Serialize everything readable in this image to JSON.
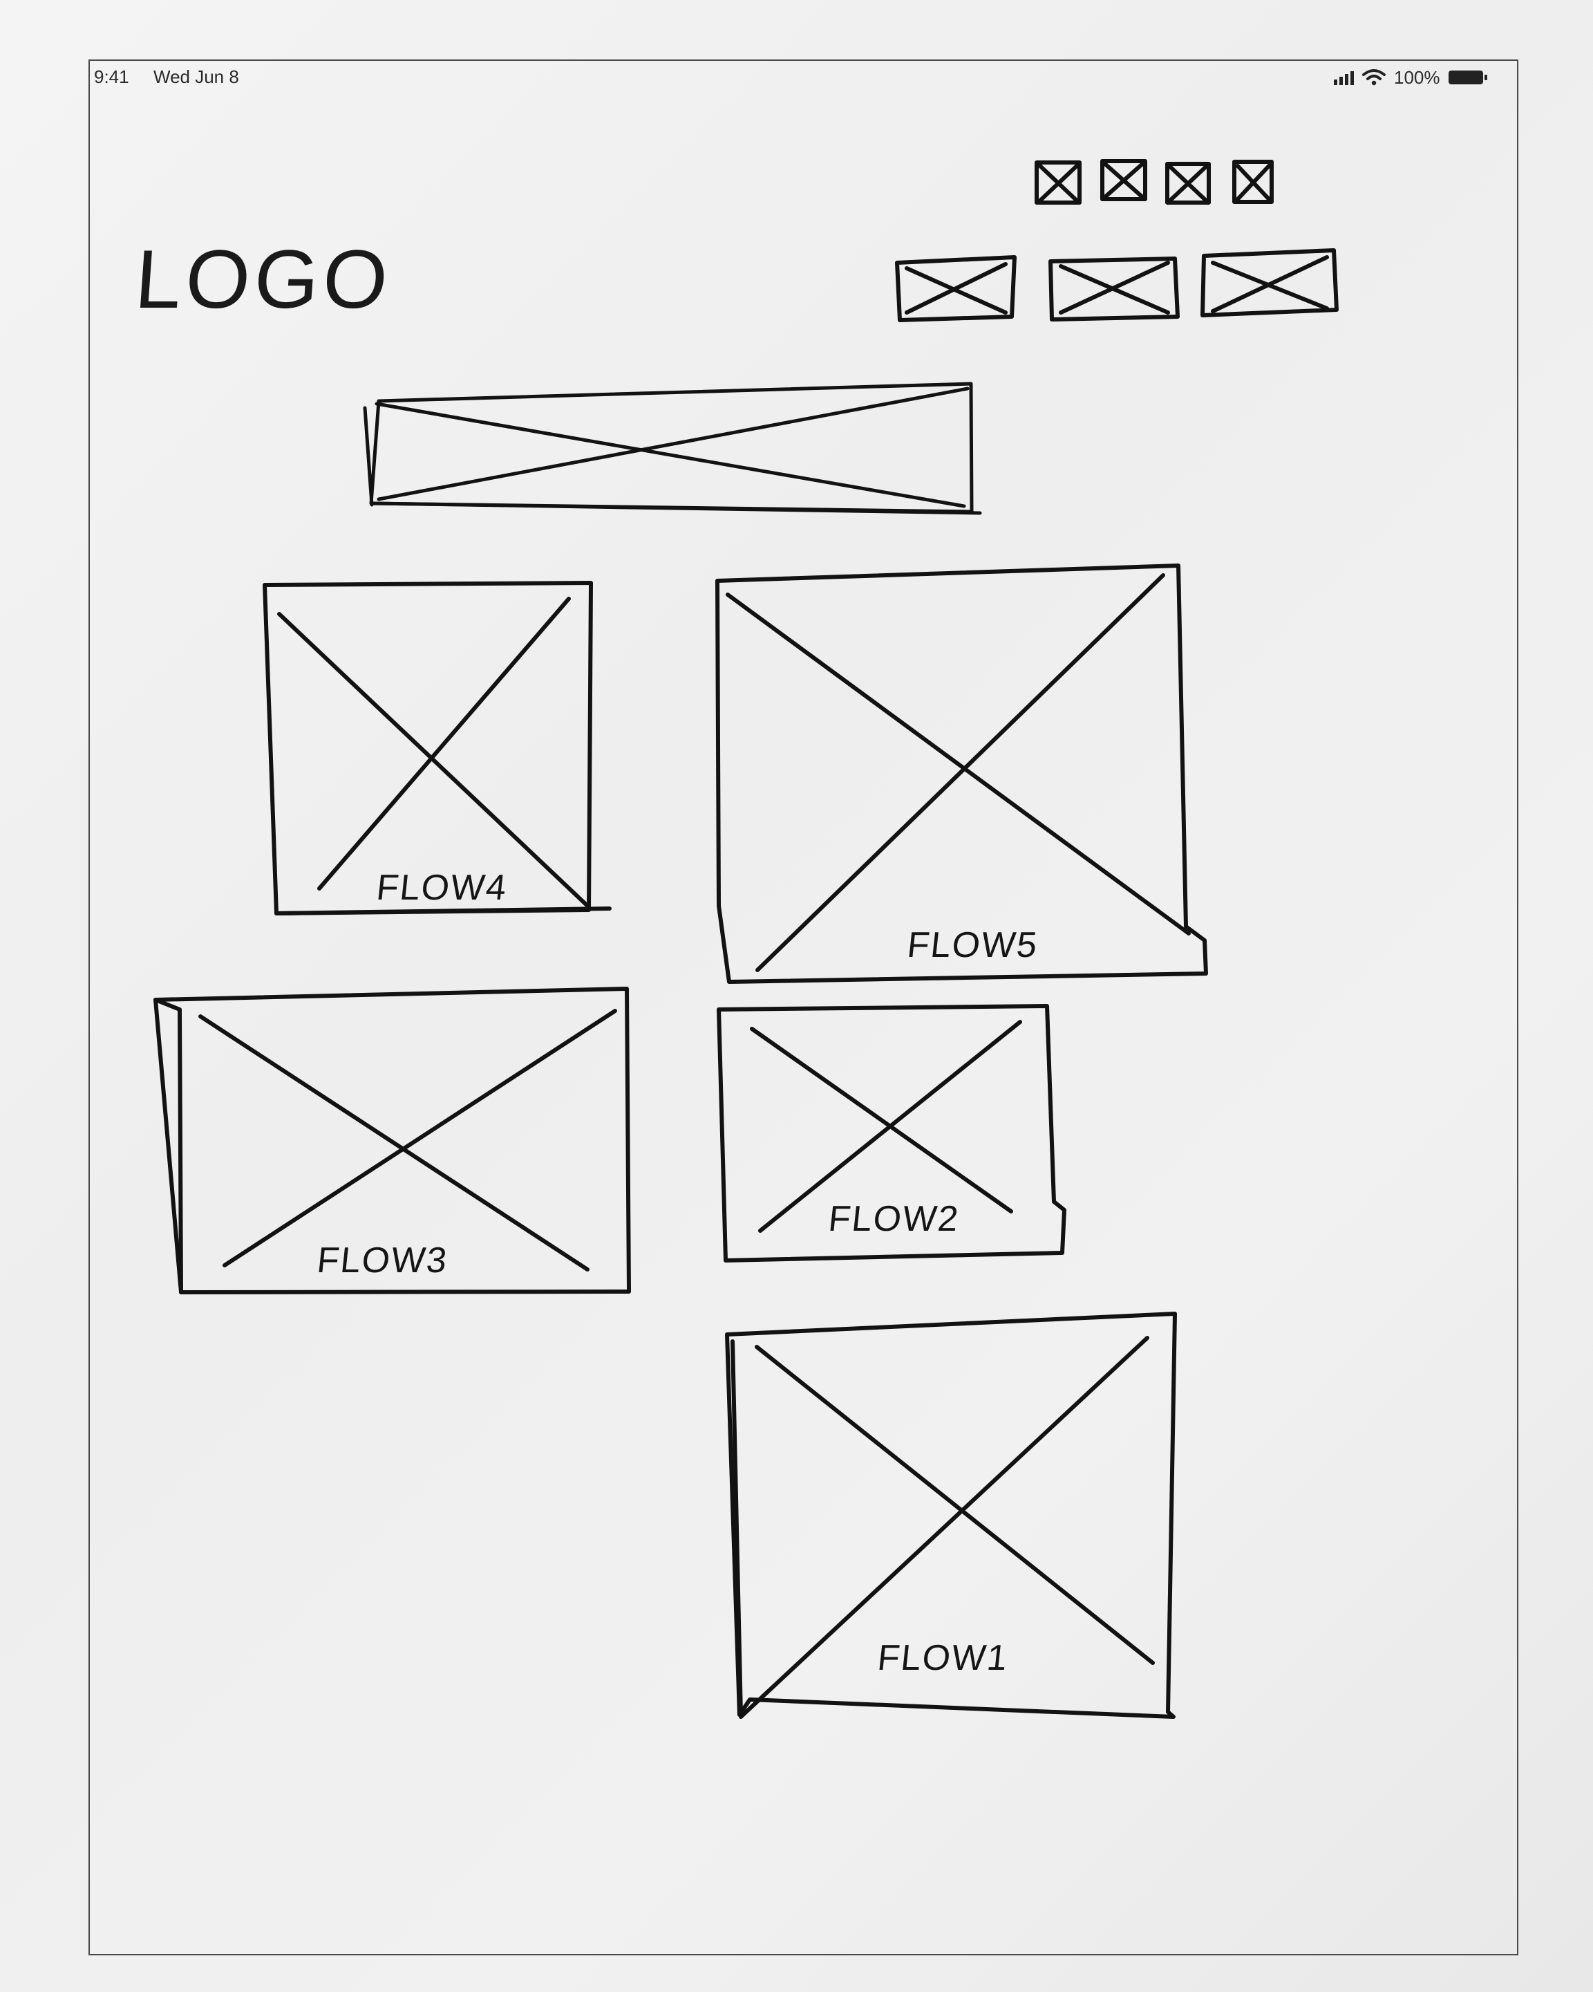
{
  "status_bar": {
    "time": "9:41",
    "date": "Wed Jun 8",
    "battery": "100%",
    "icons": [
      "signal-icon",
      "wifi-icon",
      "battery-icon"
    ]
  },
  "header": {
    "logo_text": "LOGO",
    "small_icons": [
      "image-placeholder-icon",
      "image-placeholder-icon",
      "image-placeholder-icon",
      "image-placeholder-icon"
    ],
    "nav_buttons": [
      "image-placeholder",
      "image-placeholder",
      "image-placeholder"
    ]
  },
  "banner": {
    "kind": "image-placeholder"
  },
  "flows": [
    {
      "label": "FLOW4"
    },
    {
      "label": "FLOW5"
    },
    {
      "label": "FLOW3"
    },
    {
      "label": "FLOW2"
    },
    {
      "label": "FLOW1"
    }
  ],
  "colors": {
    "ink": "#121212",
    "paper": "#f1f1f1"
  }
}
